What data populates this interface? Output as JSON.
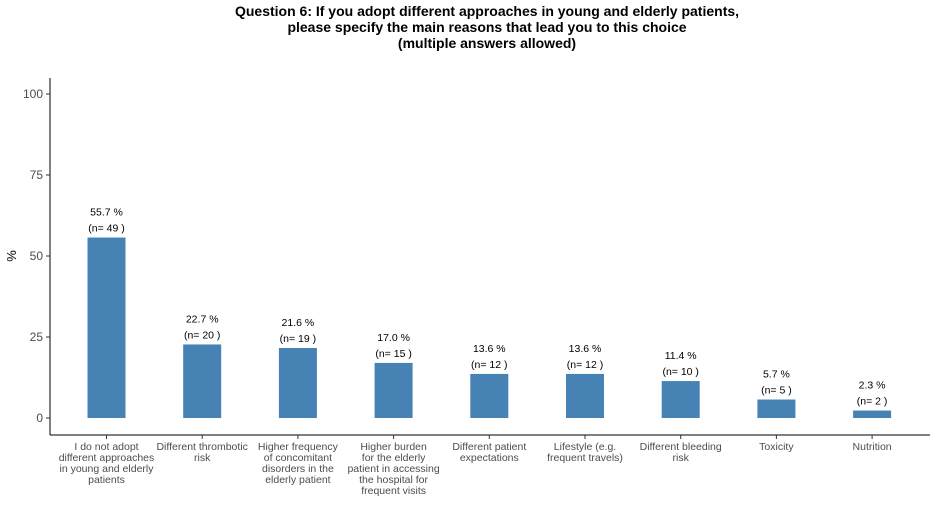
{
  "chart_data": {
    "type": "bar",
    "title": "Question 6: If you adopt different approaches in young and elderly patients,\nplease specify the main reasons that lead you to this choice\n(multiple answers allowed)",
    "ylabel": "%",
    "xlabel": "",
    "ylim": [
      0,
      100
    ],
    "yticks": [
      0,
      25,
      50,
      75,
      100
    ],
    "grid": false,
    "bar_color": "#4682b4",
    "categories": [
      "I do not adopt different approaches in young and elderly patients",
      "Different thrombotic risk",
      "Higher frequency of concomitant disorders in the elderly patient",
      "Higher burden for the elderly patient in accessing the hospital for frequent visits",
      "Different patient expectations",
      "Lifestyle (e.g. frequent travels)",
      "Different bleeding risk",
      "Toxicity",
      "Nutrition"
    ],
    "category_lines": [
      [
        "I do not adopt",
        "different approaches",
        "in young and elderly",
        "patients"
      ],
      [
        "Different thrombotic",
        "risk"
      ],
      [
        "Higher frequency",
        "of concomitant",
        "disorders in the",
        "elderly patient"
      ],
      [
        "Higher burden",
        "for the elderly",
        "patient in accessing",
        "the hospital for",
        "frequent visits"
      ],
      [
        "Different patient",
        "expectations"
      ],
      [
        "Lifestyle (e.g.",
        "frequent travels)"
      ],
      [
        "Different bleeding",
        "risk"
      ],
      [
        "Toxicity"
      ],
      [
        "Nutrition"
      ]
    ],
    "values": [
      55.7,
      22.7,
      21.6,
      17.0,
      13.6,
      13.6,
      11.4,
      5.7,
      2.3
    ],
    "value_labels": [
      "55.7 %",
      "22.7 %",
      "21.6 %",
      "17.0 %",
      "13.6 %",
      "13.6 %",
      "11.4 %",
      "5.7 %",
      "2.3 %"
    ],
    "n_labels": [
      "(n= 49 )",
      "(n= 20 )",
      "(n= 19 )",
      "(n= 15 )",
      "(n= 12 )",
      "(n= 12 )",
      "(n= 10 )",
      "(n= 5 )",
      "(n= 2 )"
    ]
  }
}
